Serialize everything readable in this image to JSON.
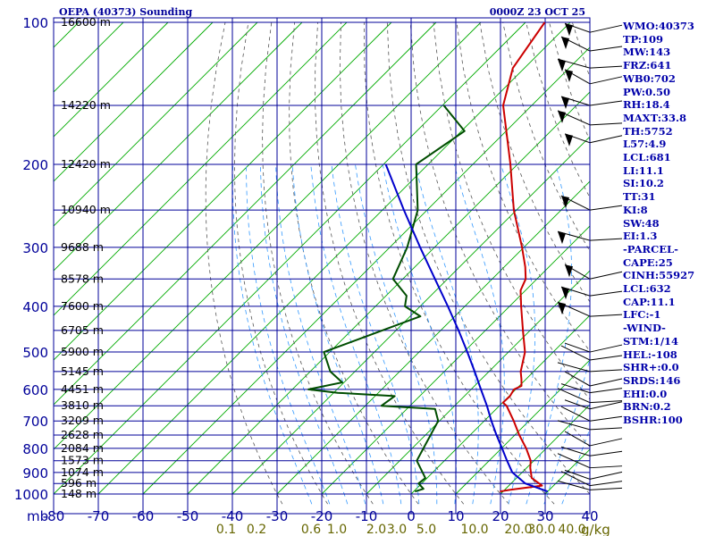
{
  "chart_data": {
    "type": "line",
    "chart_kind": "skew-t log-p sounding",
    "title": "OEPA (40373) Sounding",
    "valid_time": "0000Z 23 OCT 25",
    "xlabel": "",
    "ylabel": "mb",
    "x_unit": "°C",
    "mixing_ratio_unit": "g/kg",
    "pressure_axis": {
      "scale": "log",
      "range": [
        1000,
        100
      ],
      "ticks": [
        "100",
        "200",
        "300",
        "400",
        "500",
        "600",
        "700",
        "800",
        "900",
        "1000"
      ]
    },
    "temperature_axis": {
      "range": [
        -80,
        40
      ],
      "ticks": [
        "-80",
        "-70",
        "-60",
        "-50",
        "-40",
        "-30",
        "-20",
        "-10",
        "0",
        "10",
        "20",
        "30",
        "40"
      ]
    },
    "mixing_ratio_ticks": [
      "0.1",
      "0.2",
      "0.6",
      "1.0",
      "2.0",
      "3.0",
      "5.0",
      "10.0",
      "20.0",
      "30.0",
      "40.0"
    ],
    "height_labels": [
      {
        "p": 100,
        "label": "16600 m"
      },
      {
        "p": 150,
        "label": "14220 m"
      },
      {
        "p": 200,
        "label": "12420 m"
      },
      {
        "p": 250,
        "label": "10940 m"
      },
      {
        "p": 300,
        "label": "9688 m"
      },
      {
        "p": 350,
        "label": "8578 m"
      },
      {
        "p": 400,
        "label": "7600 m"
      },
      {
        "p": 450,
        "label": "6705 m"
      },
      {
        "p": 500,
        "label": "5900 m"
      },
      {
        "p": 550,
        "label": "5145 m"
      },
      {
        "p": 600,
        "label": "4451 m"
      },
      {
        "p": 650,
        "label": "3810 m"
      },
      {
        "p": 700,
        "label": "3209 m"
      },
      {
        "p": 750,
        "label": "2628 m"
      },
      {
        "p": 800,
        "label": "2084 m"
      },
      {
        "p": 850,
        "label": "1573 m"
      },
      {
        "p": 900,
        "label": "1074 m"
      },
      {
        "p": 950,
        "label": "596 m"
      },
      {
        "p": 1000,
        "label": "148 m"
      }
    ],
    "series": [
      {
        "role": "temperature",
        "color": "#cc0000",
        "points": [
          {
            "p": 988,
            "t": 19.3
          },
          {
            "p": 980,
            "t": 21.1
          },
          {
            "p": 960,
            "t": 27.4
          },
          {
            "p": 925,
            "t": 23.4
          },
          {
            "p": 880,
            "t": 20.8
          },
          {
            "p": 850,
            "t": 19.3
          },
          {
            "p": 800,
            "t": 15.5
          },
          {
            "p": 750,
            "t": 11.0
          },
          {
            "p": 700,
            "t": 6.6
          },
          {
            "p": 650,
            "t": 1.6
          },
          {
            "p": 640,
            "t": 0.1
          },
          {
            "p": 620,
            "t": 0.2
          },
          {
            "p": 600,
            "t": -0.4
          },
          {
            "p": 590,
            "t": 0.5
          },
          {
            "p": 570,
            "t": -1.1
          },
          {
            "p": 550,
            "t": -2.9
          },
          {
            "p": 500,
            "t": -6.3
          },
          {
            "p": 450,
            "t": -11.6
          },
          {
            "p": 400,
            "t": -17.4
          },
          {
            "p": 370,
            "t": -21.1
          },
          {
            "p": 350,
            "t": -22.5
          },
          {
            "p": 330,
            "t": -25.3
          },
          {
            "p": 300,
            "t": -30.4
          },
          {
            "p": 250,
            "t": -40.6
          },
          {
            "p": 200,
            "t": -51.6
          },
          {
            "p": 150,
            "t": -66.4
          },
          {
            "p": 125,
            "t": -72.6
          },
          {
            "p": 100,
            "t": -75.7
          }
        ]
      },
      {
        "role": "dewpoint",
        "color": "#004d00",
        "points": [
          {
            "p": 988,
            "t": 0.3
          },
          {
            "p": 975,
            "t": 1.6
          },
          {
            "p": 950,
            "t": -0.7
          },
          {
            "p": 925,
            "t": -0.4
          },
          {
            "p": 850,
            "t": -6.2
          },
          {
            "p": 700,
            "t": -10.3
          },
          {
            "p": 660,
            "t": -13.7
          },
          {
            "p": 650,
            "t": -26.4
          },
          {
            "p": 620,
            "t": -25.6
          },
          {
            "p": 610,
            "t": -39.1
          },
          {
            "p": 600,
            "t": -46.4
          },
          {
            "p": 580,
            "t": -40.4
          },
          {
            "p": 550,
            "t": -45.5
          },
          {
            "p": 500,
            "t": -51.3
          },
          {
            "p": 420,
            "t": -37.7
          },
          {
            "p": 400,
            "t": -43.4
          },
          {
            "p": 380,
            "t": -45.4
          },
          {
            "p": 350,
            "t": -52.2
          },
          {
            "p": 300,
            "t": -56.1
          },
          {
            "p": 250,
            "t": -62.1
          },
          {
            "p": 200,
            "t": -72.7
          },
          {
            "p": 170,
            "t": -69.3
          },
          {
            "p": 150,
            "t": -79.7
          }
        ]
      },
      {
        "role": "parcel",
        "color": "#0000cc",
        "points": [
          {
            "p": 988,
            "t": 30.0
          },
          {
            "p": 950,
            "t": 23.2
          },
          {
            "p": 900,
            "t": 17.8
          },
          {
            "p": 850,
            "t": 14.0
          },
          {
            "p": 800,
            "t": 10.1
          },
          {
            "p": 750,
            "t": 5.9
          },
          {
            "p": 700,
            "t": 1.6
          },
          {
            "p": 650,
            "t": -2.8
          },
          {
            "p": 600,
            "t": -7.8
          },
          {
            "p": 550,
            "t": -13.2
          },
          {
            "p": 500,
            "t": -19.2
          },
          {
            "p": 450,
            "t": -26.0
          },
          {
            "p": 400,
            "t": -33.8
          },
          {
            "p": 350,
            "t": -42.8
          },
          {
            "p": 300,
            "t": -53.2
          },
          {
            "p": 250,
            "t": -65.2
          },
          {
            "p": 200,
            "t": -79.5
          }
        ]
      }
    ],
    "grid": true
  },
  "indices": [
    "WMO:40373",
    "TP:109",
    "MW:143",
    "FRZ:641",
    "WB0:702",
    "PW:0.50",
    "RH:18.4",
    "MAXT:33.8",
    "TH:5752",
    "L57:4.9",
    "LCL:681",
    "LI:11.1",
    "SI:10.2",
    "TT:31",
    "KI:8",
    "SW:48",
    "EI:1.3",
    "-PARCEL-",
    "CAPE:25",
    "CINH:55927",
    "LCL:632",
    "CAP:11.1",
    "LFC:-1",
    "-WIND-",
    "STM:1/14",
    "HEL:-108",
    "SHR+:0.0",
    "SRDS:146",
    "EHI:0.0",
    "BRN:0.2",
    "BSHR:100"
  ],
  "colors": {
    "frame": "#000099",
    "isotherm": "#00aa00",
    "dry_adiabat": "#555555",
    "moist_adiabat": "#3399ff",
    "mixing_ratio_label": "#666600",
    "label": "#000099"
  }
}
